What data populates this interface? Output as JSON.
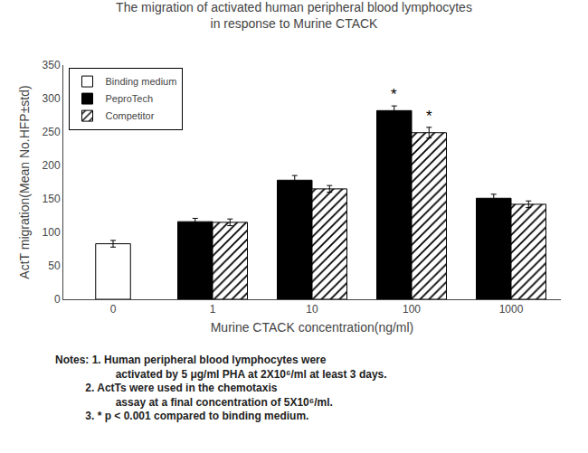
{
  "chart_data": {
    "type": "bar",
    "title": "The migration of activated human peripheral blood lymphocytes",
    "subtitle": "in response to Murine CTACK",
    "xlabel": "Murine CTACK concentration(ng/ml)",
    "ylabel": "ActT migration(Mean No.HFP±std)",
    "categories": [
      "0",
      "1",
      "10",
      "100",
      "1000"
    ],
    "series": [
      {
        "name": "Binding medium",
        "color": "white",
        "marker": "solid",
        "values": [
          83,
          null,
          null,
          null,
          null
        ],
        "errors": [
          5,
          null,
          null,
          null,
          null
        ]
      },
      {
        "name": "PeproTech",
        "color": "black",
        "marker": "solid",
        "values": [
          null,
          116,
          178,
          282,
          151
        ],
        "errors": [
          null,
          5,
          7,
          7,
          6
        ]
      },
      {
        "name": "Competitor",
        "color": "white",
        "marker": "hatched",
        "values": [
          null,
          115,
          165,
          249,
          142
        ],
        "errors": [
          null,
          5,
          5,
          8,
          5
        ]
      }
    ],
    "ylim": [
      0,
      350
    ],
    "yticks": [
      0,
      50,
      100,
      150,
      200,
      250,
      300,
      350
    ],
    "grid": false,
    "legend": "upper left",
    "annotations": [
      {
        "text": "*",
        "category": "100",
        "series": "PeproTech"
      },
      {
        "text": "*",
        "category": "100",
        "series": "Competitor"
      }
    ],
    "notes": [
      "Notes: 1. Human peripheral blood lymphocytes were",
      "activated by 5 μg/ml PHA at 2X10⁶/ml at least 3 days.",
      "2. ActTs were used in the chemotaxis",
      "assay at a final concentration of 5X10⁶/ml.",
      "3. * p < 0.001 compared to binding medium."
    ]
  }
}
